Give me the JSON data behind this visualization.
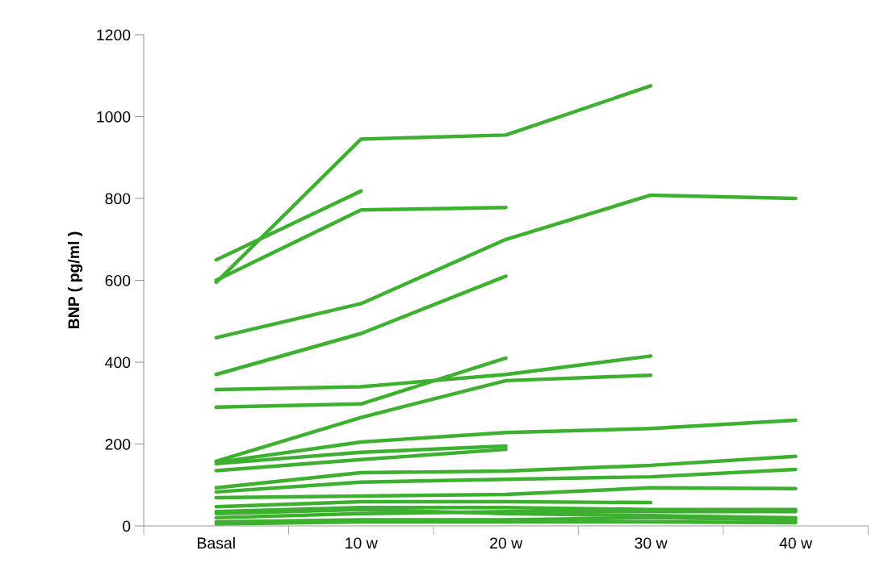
{
  "chart_data": {
    "type": "line",
    "ylabel": "BNP ( pg/ml )",
    "categories": [
      "Basal",
      "10 w",
      "20 w",
      "30 w",
      "40 w"
    ],
    "ylim": [
      0,
      1200
    ],
    "yticks": [
      0,
      200,
      400,
      600,
      800,
      1000,
      1200
    ],
    "grid": false,
    "legend": false,
    "marker": "none",
    "line_style": "solid",
    "series": [
      {
        "color": "#3db030",
        "values": [
          595,
          945,
          955,
          1075,
          null
        ]
      },
      {
        "color": "#3db030",
        "values": [
          650,
          818,
          null,
          null,
          null
        ]
      },
      {
        "color": "#3db030",
        "values": [
          600,
          772,
          778,
          null,
          null
        ]
      },
      {
        "color": "#3db030",
        "values": [
          460,
          543,
          700,
          808,
          800
        ]
      },
      {
        "color": "#3db030",
        "values": [
          370,
          470,
          610,
          null,
          null
        ]
      },
      {
        "color": "#3db030",
        "values": [
          333,
          340,
          370,
          415,
          null
        ]
      },
      {
        "color": "#3db030",
        "values": [
          290,
          298,
          410,
          null,
          null
        ]
      },
      {
        "color": "#3db030",
        "values": [
          158,
          265,
          355,
          368,
          null
        ]
      },
      {
        "color": "#3db030",
        "values": [
          155,
          205,
          228,
          238,
          258
        ]
      },
      {
        "color": "#3db030",
        "values": [
          152,
          180,
          195,
          null,
          null
        ]
      },
      {
        "color": "#3db030",
        "values": [
          135,
          162,
          187,
          null,
          null
        ]
      },
      {
        "color": "#3db030",
        "values": [
          93,
          130,
          134,
          148,
          170
        ]
      },
      {
        "color": "#3db030",
        "values": [
          83,
          107,
          114,
          120,
          138
        ]
      },
      {
        "color": "#3db030",
        "values": [
          69,
          73,
          77,
          93,
          91
        ]
      },
      {
        "color": "#3db030",
        "values": [
          47,
          59,
          59,
          57,
          null
        ]
      },
      {
        "color": "#3db030",
        "values": [
          35,
          45,
          45,
          40,
          40
        ]
      },
      {
        "color": "#3db030",
        "values": [
          30,
          40,
          30,
          25,
          20
        ]
      },
      {
        "color": "#3db030",
        "values": [
          20,
          30,
          35,
          35,
          35
        ]
      },
      {
        "color": "#3db030",
        "values": [
          10,
          15,
          15,
          20,
          15
        ]
      },
      {
        "color": "#3db030",
        "values": [
          5,
          10,
          10,
          10,
          8
        ]
      }
    ]
  }
}
